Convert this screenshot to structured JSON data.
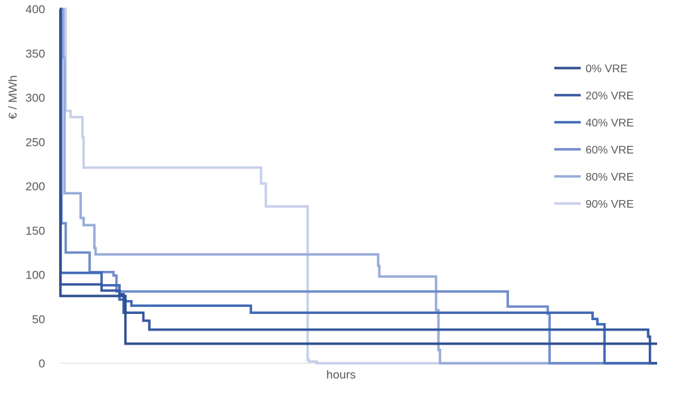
{
  "chart_data": {
    "type": "line",
    "title": "",
    "xlabel": "hours",
    "ylabel": "€ / MWh",
    "ylim": [
      0,
      400
    ],
    "yticks": [
      "0",
      "50",
      "100",
      "150",
      "200",
      "250",
      "300",
      "350",
      "400"
    ],
    "xlim": [
      0,
      1
    ],
    "grid": false,
    "legend_position": "right",
    "series": [
      {
        "name": "0% VRE",
        "color": "#2f4f8f",
        "x": [
          0,
          0.0012,
          0.0012,
          0.11,
          0.11,
          1.0
        ],
        "y": [
          400,
          400,
          76,
          76,
          22,
          22
        ]
      },
      {
        "name": "20% VRE",
        "color": "#3558a0",
        "x": [
          0,
          0.0012,
          0.0012,
          0.07,
          0.07,
          0.1,
          0.1,
          0.107,
          0.107,
          0.14,
          0.14,
          0.15,
          0.15,
          0.985,
          0.985,
          0.988,
          0.988,
          1.0
        ],
        "y": [
          400,
          400,
          89,
          89,
          82,
          82,
          78,
          78,
          57,
          57,
          48,
          48,
          38,
          38,
          30,
          30,
          0,
          0
        ]
      },
      {
        "name": "40% VRE",
        "color": "#4169b5",
        "x": [
          0,
          0.0015,
          0.0015,
          0.07,
          0.07,
          0.1,
          0.1,
          0.11,
          0.11,
          0.12,
          0.12,
          0.32,
          0.32,
          0.892,
          0.892,
          0.9,
          0.9,
          0.912,
          0.912,
          1.0
        ],
        "y": [
          400,
          400,
          102,
          102,
          88,
          88,
          72,
          72,
          70,
          70,
          65,
          65,
          57,
          57,
          50,
          50,
          44,
          44,
          0,
          0
        ]
      },
      {
        "name": "60% VRE",
        "color": "#6f8ccb",
        "x": [
          0,
          0.003,
          0.003,
          0.01,
          0.01,
          0.05,
          0.05,
          0.09,
          0.09,
          0.095,
          0.095,
          0.75,
          0.75,
          0.817,
          0.817,
          0.82,
          0.82,
          0.8225,
          0.8225,
          1.0
        ],
        "y": [
          400,
          400,
          158,
          158,
          125,
          125,
          103,
          103,
          99,
          99,
          81,
          81,
          64,
          64,
          56,
          56,
          0,
          0,
          0,
          0
        ]
      },
      {
        "name": "80% VRE",
        "color": "#98acd9",
        "x": [
          0,
          0.006,
          0.006,
          0.008,
          0.008,
          0.035,
          0.035,
          0.04,
          0.04,
          0.058,
          0.058,
          0.06,
          0.06,
          0.533,
          0.533,
          0.535,
          0.535,
          0.63,
          0.63,
          0.634,
          0.634,
          0.6365,
          0.6365,
          1.0
        ],
        "y": [
          400,
          400,
          345,
          345,
          192,
          192,
          164,
          164,
          156,
          156,
          130,
          130,
          123,
          123,
          110,
          110,
          98,
          98,
          60,
          60,
          15,
          15,
          0,
          0
        ]
      },
      {
        "name": "90% VRE",
        "color": "#c6d0ea",
        "x": [
          0,
          0.01,
          0.01,
          0.018,
          0.018,
          0.038,
          0.038,
          0.04,
          0.04,
          0.337,
          0.337,
          0.345,
          0.345,
          0.415,
          0.415,
          0.417,
          0.417,
          0.43,
          0.43,
          1.0
        ],
        "y": [
          400,
          400,
          285,
          285,
          278,
          278,
          255,
          255,
          221,
          221,
          203,
          203,
          177,
          177,
          4,
          4,
          2,
          2,
          0,
          0
        ]
      }
    ]
  }
}
